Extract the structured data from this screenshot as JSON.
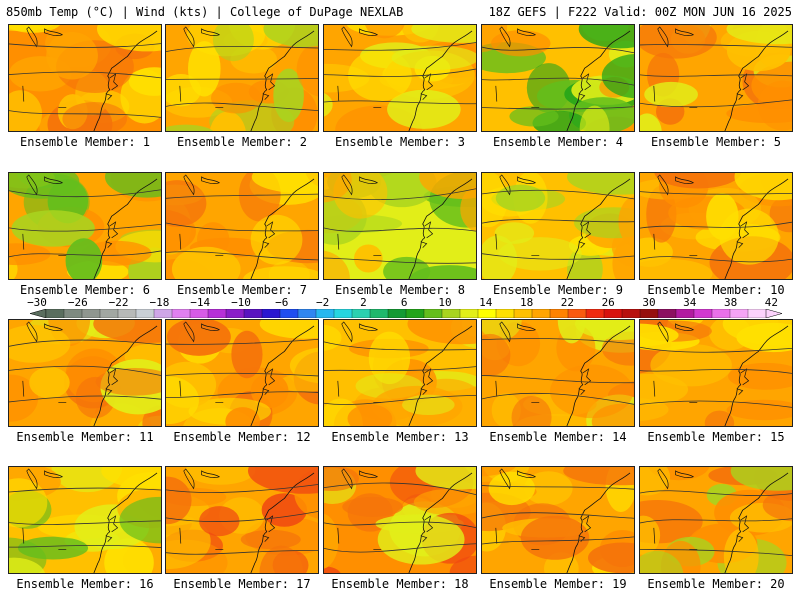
{
  "header": {
    "title_left": "850mb Temp (°C) | Wind (kts) | College of DuPage NEXLAB",
    "title_right": "18Z GEFS | F222 Valid: 00Z MON JUN 16 2025"
  },
  "colorbar": {
    "tick_labels": [
      "−30",
      "−26",
      "−22",
      "−18",
      "−14",
      "−10",
      "−6",
      "−2",
      "2",
      "6",
      "10",
      "14",
      "18",
      "22",
      "26",
      "30",
      "34",
      "38",
      "42"
    ],
    "colors": [
      "#5a6e5e",
      "#7e8a80",
      "#8f968f",
      "#a2a7a2",
      "#b7b9b8",
      "#c9cfd6",
      "#cfa6e8",
      "#e080f0",
      "#d65be6",
      "#b630d8",
      "#8a1ec8",
      "#5a14c0",
      "#2a16d0",
      "#1f4ef0",
      "#2f86f0",
      "#27b7f0",
      "#26d6e0",
      "#2bd0b0",
      "#1fb86c",
      "#149a33",
      "#23a41a",
      "#64be1c",
      "#a8d41f",
      "#e2ee18",
      "#ffff00",
      "#ffe000",
      "#ffc000",
      "#ffa500",
      "#ff8200",
      "#fa5a10",
      "#f02a10",
      "#d8120e",
      "#b8100e",
      "#96100e",
      "#8c1060",
      "#b21aa0",
      "#d238d0",
      "#ea70ea",
      "#f4a4f4",
      "#fbd2fb"
    ]
  },
  "members": [
    {
      "label": "Ensemble Member: 1",
      "palette": [
        "#ff8f00",
        "#ffa500",
        "#ffc000",
        "#f5730a",
        "#ffe000"
      ]
    },
    {
      "label": "Ensemble Member: 2",
      "palette": [
        "#ffa500",
        "#ffc000",
        "#ffe000",
        "#ff8f00",
        "#a8d41f"
      ]
    },
    {
      "label": "Ensemble Member: 3",
      "palette": [
        "#ffa500",
        "#ffc000",
        "#ffe000",
        "#ff8f00",
        "#e2ee18"
      ]
    },
    {
      "label": "Ensemble Member: 4",
      "palette": [
        "#ffc000",
        "#e2ee18",
        "#64be1c",
        "#ff8f00",
        "#23a41a"
      ]
    },
    {
      "label": "Ensemble Member: 5",
      "palette": [
        "#ffa500",
        "#ff8f00",
        "#ffc000",
        "#f5730a",
        "#e2ee18"
      ]
    },
    {
      "label": "Ensemble Member: 6",
      "palette": [
        "#ffa500",
        "#ffe000",
        "#a8d41f",
        "#ff8f00",
        "#64be1c"
      ]
    },
    {
      "label": "Ensemble Member: 7",
      "palette": [
        "#ffa500",
        "#ff8f00",
        "#ffc000",
        "#f5730a",
        "#ffe000"
      ]
    },
    {
      "label": "Ensemble Member: 8",
      "palette": [
        "#e2ee18",
        "#a8d41f",
        "#ffc000",
        "#64be1c",
        "#ffa500"
      ]
    },
    {
      "label": "Ensemble Member: 9",
      "palette": [
        "#ffc000",
        "#ffe000",
        "#e2ee18",
        "#ffa500",
        "#a8d41f"
      ]
    },
    {
      "label": "Ensemble Member: 10",
      "palette": [
        "#ffa500",
        "#ff8f00",
        "#ffc000",
        "#f5730a",
        "#ffe000"
      ]
    },
    {
      "label": "Ensemble Member: 11",
      "palette": [
        "#ffa500",
        "#ff8f00",
        "#ffc000",
        "#e2ee18",
        "#f5730a"
      ]
    },
    {
      "label": "Ensemble Member: 12",
      "palette": [
        "#ffa500",
        "#ff8f00",
        "#ffc000",
        "#f5730a",
        "#ffe000"
      ]
    },
    {
      "label": "Ensemble Member: 13",
      "palette": [
        "#ffc000",
        "#ffa500",
        "#ffe000",
        "#e2ee18",
        "#ff8f00"
      ]
    },
    {
      "label": "Ensemble Member: 14",
      "palette": [
        "#ffa500",
        "#ff8f00",
        "#ffc000",
        "#f5730a",
        "#e2ee18"
      ]
    },
    {
      "label": "Ensemble Member: 15",
      "palette": [
        "#ffa500",
        "#ff8f00",
        "#ffc000",
        "#f5730a",
        "#ffe000"
      ]
    },
    {
      "label": "Ensemble Member: 16",
      "palette": [
        "#ffc000",
        "#ffa500",
        "#e2ee18",
        "#64be1c",
        "#ffe000"
      ]
    },
    {
      "label": "Ensemble Member: 17",
      "palette": [
        "#ffa500",
        "#ff8f00",
        "#f5730a",
        "#ffc000",
        "#f04a10"
      ]
    },
    {
      "label": "Ensemble Member: 18",
      "palette": [
        "#ff8f00",
        "#f5730a",
        "#ffa500",
        "#f04a10",
        "#e2ee18"
      ]
    },
    {
      "label": "Ensemble Member: 19",
      "palette": [
        "#ffa500",
        "#ffc000",
        "#ff8f00",
        "#ffe000",
        "#f5730a"
      ]
    },
    {
      "label": "Ensemble Member: 20",
      "palette": [
        "#ffa500",
        "#ff8f00",
        "#f5730a",
        "#ffc000",
        "#a8d41f"
      ]
    }
  ]
}
